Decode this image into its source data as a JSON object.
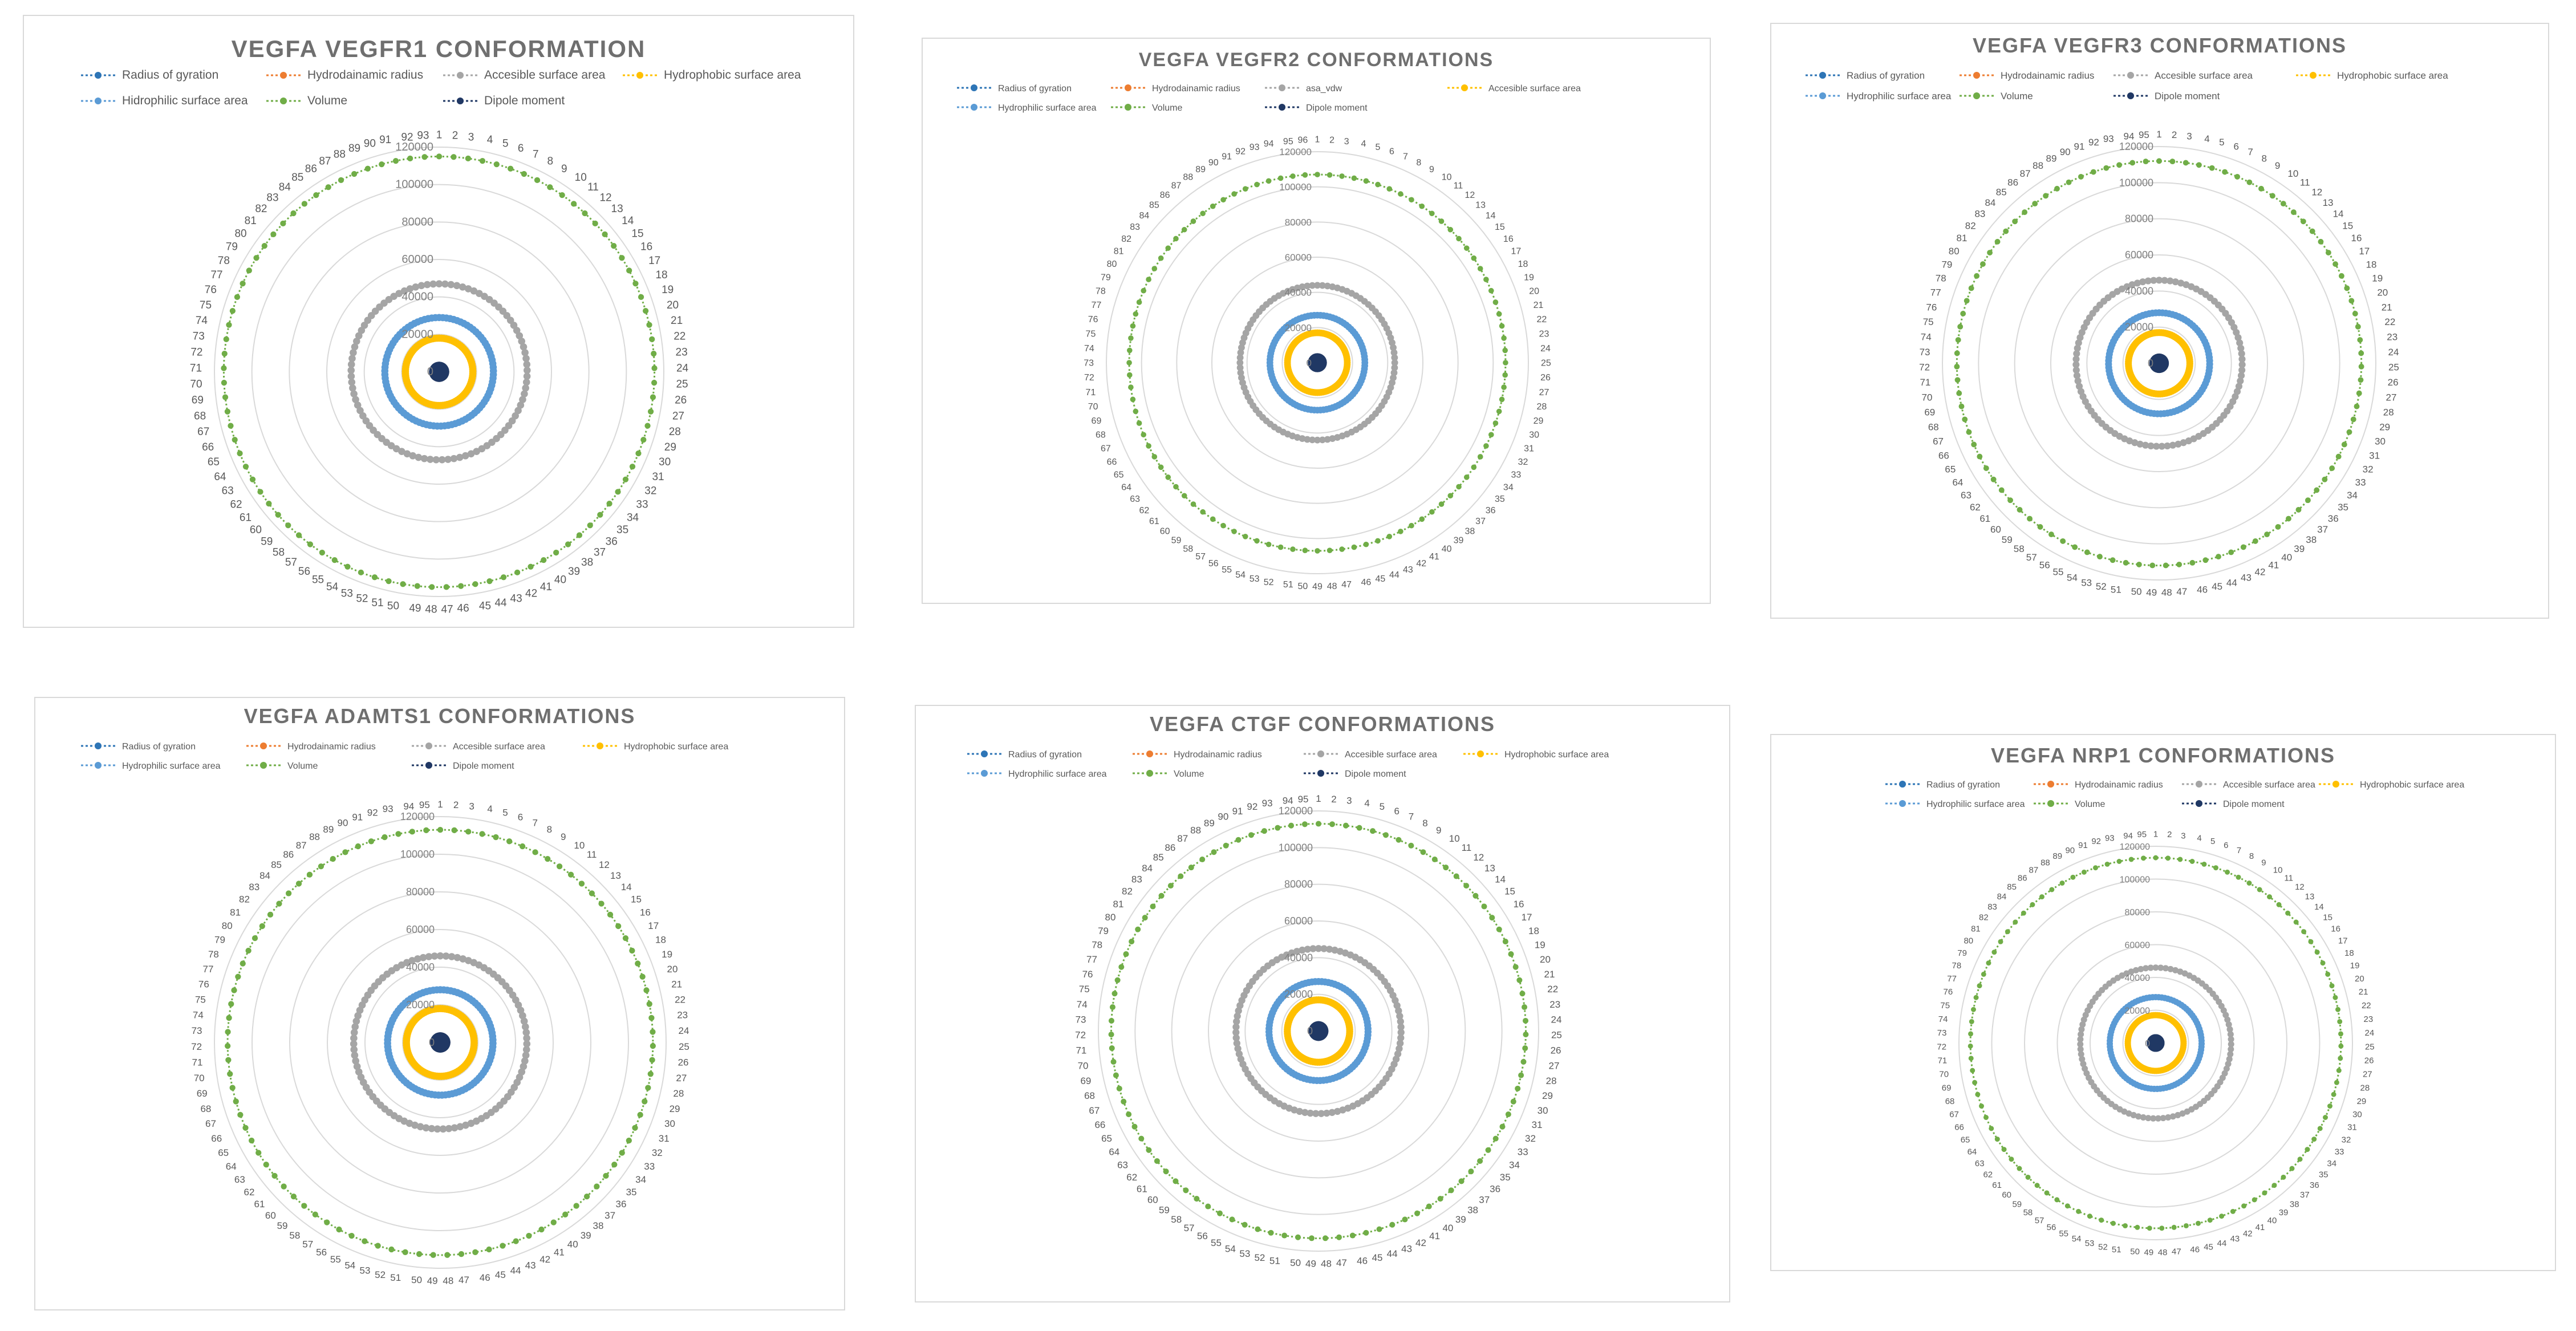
{
  "figure": {
    "colors": {
      "radius_of_gyration": "#2e75b6",
      "hydrodynamic_radius": "#ed7d31",
      "accessible_surface_area": "#a5a5a5",
      "hydrophobic_surface_area": "#ffc000",
      "hydrophilic_surface_area": "#5b9bd5",
      "volume": "#70ad47",
      "dipole_moment": "#203864",
      "grid": "#d9d9d9"
    }
  },
  "chart_data": [
    {
      "type": "radar",
      "title": "VEGFA VEGFR1 CONFORMATION",
      "categories_range": [
        1,
        93
      ],
      "rmax": 120000,
      "tick_labels": [
        "0",
        "20000",
        "40000",
        "60000",
        "80000",
        "100000",
        "120000"
      ],
      "legend": [
        "Radius of gyration",
        "Hydrodainamic radius",
        "Accesible surface area",
        "Hydrophobic surface area",
        "Hidrophilic surface area",
        "Volume",
        "Dipole moment"
      ],
      "series": [
        {
          "key": "radius_of_gyration",
          "name": "Radius of gyration",
          "approx_value": 0
        },
        {
          "key": "hydrodynamic_radius",
          "name": "Hydrodainamic radius",
          "approx_value": 0
        },
        {
          "key": "accessible_surface_area",
          "name": "Accesible surface area",
          "approx_value": 47000
        },
        {
          "key": "hydrophobic_surface_area",
          "name": "Hydrophobic surface area",
          "approx_value": 18000
        },
        {
          "key": "hydrophilic_surface_area",
          "name": "Hidrophilic surface area",
          "approx_value": 29000
        },
        {
          "key": "volume",
          "name": "Volume",
          "approx_value": 115000
        },
        {
          "key": "dipole_moment",
          "name": "Dipole moment",
          "approx_value": 0
        }
      ]
    },
    {
      "type": "radar",
      "title": "VEGFA VEGFR2 CONFORMATIONS",
      "categories_range": [
        1,
        96
      ],
      "rmax": 120000,
      "tick_labels": [
        "0",
        "20000",
        "40000",
        "60000",
        "80000",
        "100000",
        "120000"
      ],
      "legend": [
        "Radius of gyration",
        "Hydrodainamic radius",
        "asa_vdw",
        "Accesible surface area",
        "Hydrophilic surface area",
        "Volume",
        "Dipole moment"
      ],
      "series": [
        {
          "key": "radius_of_gyration",
          "name": "Radius of gyration",
          "approx_value": 0
        },
        {
          "key": "hydrodynamic_radius",
          "name": "Hydrodainamic radius",
          "approx_value": 0
        },
        {
          "key": "accessible_surface_area",
          "name": "asa_vdw",
          "approx_value": 44000
        },
        {
          "key": "hydrophobic_surface_area",
          "name": "Accesible surface area",
          "approx_value": 17000
        },
        {
          "key": "hydrophilic_surface_area",
          "name": "Hydrophilic surface area",
          "approx_value": 27000
        },
        {
          "key": "volume",
          "name": "Volume",
          "approx_value": 107000
        },
        {
          "key": "dipole_moment",
          "name": "Dipole moment",
          "approx_value": 0
        }
      ]
    },
    {
      "type": "radar",
      "title": "VEGFA VEGFR3 CONFORMATIONS",
      "categories_range": [
        1,
        95
      ],
      "rmax": 120000,
      "tick_labels": [
        "0",
        "20000",
        "40000",
        "60000",
        "80000",
        "100000",
        "120000"
      ],
      "legend": [
        "Radius of gyration",
        "Hydrodainamic radius",
        "Accesible surface area",
        "Hydrophobic surface area",
        "Hydrophilic surface area",
        "Volume",
        "Dipole moment"
      ],
      "series": [
        {
          "key": "radius_of_gyration",
          "name": "Radius of gyration",
          "approx_value": 0
        },
        {
          "key": "hydrodynamic_radius",
          "name": "Hydrodainamic radius",
          "approx_value": 0
        },
        {
          "key": "accessible_surface_area",
          "name": "Accesible surface area",
          "approx_value": 46000
        },
        {
          "key": "hydrophobic_surface_area",
          "name": "Hydrophobic surface area",
          "approx_value": 17000
        },
        {
          "key": "hydrophilic_surface_area",
          "name": "Hydrophilic surface area",
          "approx_value": 28000
        },
        {
          "key": "volume",
          "name": "Volume",
          "approx_value": 112000
        },
        {
          "key": "dipole_moment",
          "name": "Dipole moment",
          "approx_value": 0
        }
      ]
    },
    {
      "type": "radar",
      "title": "VEGFA ADAMTS1 CONFORMATIONS",
      "categories_range": [
        1,
        95
      ],
      "rmax": 120000,
      "tick_labels": [
        "0",
        "20000",
        "40000",
        "60000",
        "80000",
        "100000",
        "120000"
      ],
      "legend": [
        "Radius of gyration",
        "Hydrodainamic radius",
        "Accesible surface area",
        "Hydrophobic surface area",
        "Hydrophilic surface area",
        "Volume",
        "Dipole moment"
      ],
      "series": [
        {
          "key": "radius_of_gyration",
          "name": "Radius of gyration",
          "approx_value": 0
        },
        {
          "key": "hydrodynamic_radius",
          "name": "Hydrodainamic radius",
          "approx_value": 0
        },
        {
          "key": "accessible_surface_area",
          "name": "Accesible surface area",
          "approx_value": 46000
        },
        {
          "key": "hydrophobic_surface_area",
          "name": "Hydrophobic surface area",
          "approx_value": 18000
        },
        {
          "key": "hydrophilic_surface_area",
          "name": "Hydrophilic surface area",
          "approx_value": 28000
        },
        {
          "key": "volume",
          "name": "Volume",
          "approx_value": 113000
        },
        {
          "key": "dipole_moment",
          "name": "Dipole moment",
          "approx_value": 0
        }
      ]
    },
    {
      "type": "radar",
      "title": "VEGFA CTGF CONFORMATIONS",
      "categories_range": [
        1,
        95
      ],
      "rmax": 120000,
      "tick_labels": [
        "0",
        "20000",
        "40000",
        "60000",
        "80000",
        "100000",
        "120000"
      ],
      "legend": [
        "Radius of gyration",
        "Hydrodainamic radius",
        "Accesible surface area",
        "Hydrophobic surface area",
        "Hydrophilic surface area",
        "Volume",
        "Dipole moment"
      ],
      "series": [
        {
          "key": "radius_of_gyration",
          "name": "Radius of gyration",
          "approx_value": 0
        },
        {
          "key": "hydrodynamic_radius",
          "name": "Hydrodainamic radius",
          "approx_value": 0
        },
        {
          "key": "accessible_surface_area",
          "name": "Accesible surface area",
          "approx_value": 45000
        },
        {
          "key": "hydrophobic_surface_area",
          "name": "Hydrophobic surface area",
          "approx_value": 17000
        },
        {
          "key": "hydrophilic_surface_area",
          "name": "Hydrophilic surface area",
          "approx_value": 27000
        },
        {
          "key": "volume",
          "name": "Volume",
          "approx_value": 113000
        },
        {
          "key": "dipole_moment",
          "name": "Dipole moment",
          "approx_value": 0
        }
      ]
    },
    {
      "type": "radar",
      "title": "VEGFA NRP1 CONFORMATIONS",
      "categories_range": [
        1,
        95
      ],
      "rmax": 120000,
      "tick_labels": [
        "0",
        "20000",
        "40000",
        "60000",
        "80000",
        "100000",
        "120000"
      ],
      "legend": [
        "Radius of gyration",
        "Hydrodainamic radius",
        "Accesible surface area",
        "Hydrophobic surface area",
        "Hydrophilic surface area",
        "Volume",
        "Dipole moment"
      ],
      "series": [
        {
          "key": "radius_of_gyration",
          "name": "Radius of gyration",
          "approx_value": 0
        },
        {
          "key": "hydrodynamic_radius",
          "name": "Hydrodainamic radius",
          "approx_value": 0
        },
        {
          "key": "accessible_surface_area",
          "name": "Accesible surface area",
          "approx_value": 46000
        },
        {
          "key": "hydrophobic_surface_area",
          "name": "Hydrophobic surface area",
          "approx_value": 17000
        },
        {
          "key": "hydrophilic_surface_area",
          "name": "Hydrophilic surface area",
          "approx_value": 28000
        },
        {
          "key": "volume",
          "name": "Volume",
          "approx_value": 113000
        },
        {
          "key": "dipole_moment",
          "name": "Dipole moment",
          "approx_value": 0
        }
      ]
    }
  ]
}
